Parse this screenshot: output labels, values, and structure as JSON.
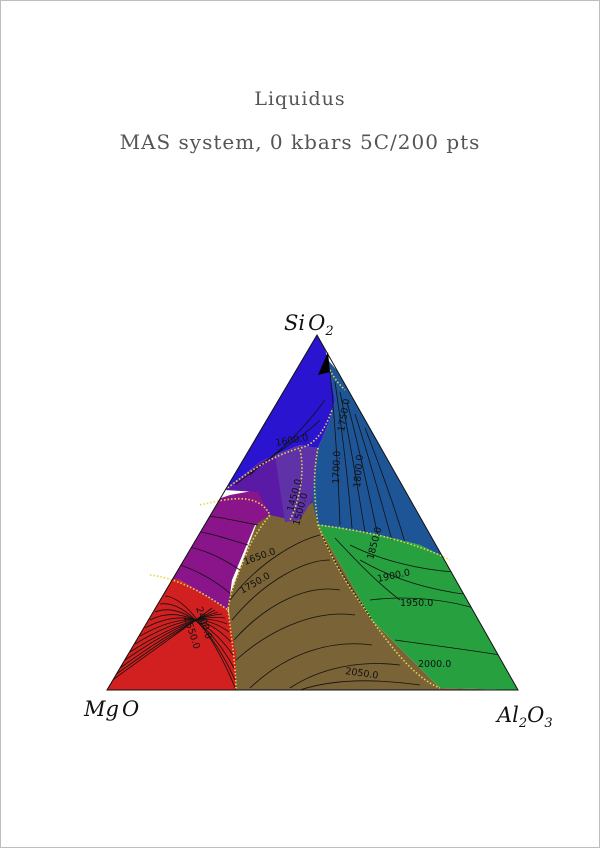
{
  "title": "Liquidus",
  "subtitle": "MAS system, 0 kbars 5C/200 pts",
  "vertices": {
    "top": {
      "base": "Si",
      "mid": "O",
      "sub": "2"
    },
    "left": {
      "base": "Mg",
      "mid": "O",
      "sub": ""
    },
    "right": {
      "base": "Al",
      "sub1": "2",
      "mid": "O",
      "sub2": "3"
    }
  },
  "phase_colors": {
    "cristobalite": "#2a14d0",
    "protoenstatite": "#5a1aa6",
    "forsterite": "#8a158a",
    "periclase": "#d21f1f",
    "spinel": "#7a6337",
    "mullite": "#1e5597",
    "corundum": "#27a13f",
    "cordierite": "#5f32a8"
  },
  "isotherm_labels": [
    "1750.0",
    "1600.0",
    "1700.0",
    "1450.0",
    "1800.0",
    "1500.0",
    "1850.0",
    "1650.0",
    "1900.0",
    "1750.0",
    "1950.0",
    "2000.0",
    "2050.0",
    "2400.0",
    "2550.0"
  ]
}
